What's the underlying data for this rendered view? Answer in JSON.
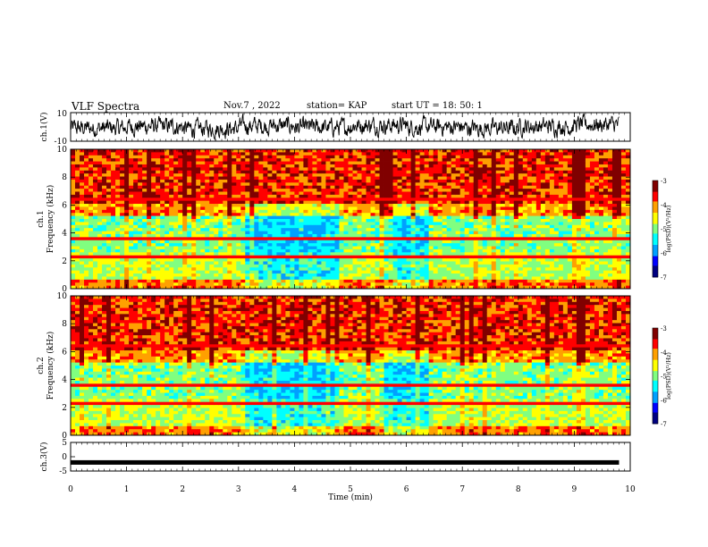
{
  "header": {
    "title": "VLF Spectra",
    "date": "Nov.7 , 2022",
    "station": "station= KAP",
    "start_ut": "start UT = 18: 50: 1"
  },
  "colors": {
    "colormap": [
      "#000080",
      "#0000ff",
      "#00a0ff",
      "#00ffff",
      "#80ff80",
      "#ffff00",
      "#ffa000",
      "#ff0000",
      "#800000"
    ],
    "waveform": "#000000",
    "frame": "#000000"
  },
  "chart_data": [
    {
      "type": "line",
      "panel": "ch1_waveform",
      "xlabel": "",
      "ylabel": "ch.1(V)",
      "xlim": [
        0,
        10
      ],
      "ylim": [
        -10,
        10
      ],
      "yticks": [
        "10",
        "-10"
      ],
      "description_values_x_min": [
        0,
        1,
        2,
        3,
        4,
        5,
        6,
        7,
        8,
        9,
        9.8
      ],
      "values": [
        -2,
        1,
        -3,
        2,
        -1,
        3,
        0,
        -2,
        1,
        4,
        2
      ]
    },
    {
      "type": "heatmap",
      "panel": "ch1_spectrogram",
      "ylabel": "ch.1 Frequency (kHz)",
      "xlim": [
        0,
        10
      ],
      "ylim": [
        0,
        10
      ],
      "yticks": [
        "0",
        "2",
        "4",
        "6",
        "8",
        "10"
      ],
      "colorbar": {
        "label": "log(PSD)(V²/Hz)",
        "range": [
          -7,
          -3
        ],
        "ticks": [
          "-3",
          "-4",
          "-5",
          "-6",
          "-7"
        ]
      },
      "low_activity_intervals_min": [
        [
          3.1,
          4.8
        ],
        [
          5.6,
          6.4
        ]
      ]
    },
    {
      "type": "heatmap",
      "panel": "ch2_spectrogram",
      "ylabel": "ch.2 Frequency (kHz)",
      "xlim": [
        0,
        10
      ],
      "ylim": [
        0,
        10
      ],
      "yticks": [
        "0",
        "2",
        "4",
        "6",
        "8",
        "10"
      ],
      "colorbar": {
        "label": "log(PSD)(V²/Hz)",
        "range": [
          -7,
          -3
        ],
        "ticks": [
          "-3",
          "-4",
          "-5",
          "-6",
          "-7"
        ]
      },
      "low_activity_intervals_min": [
        [
          3.1,
          4.8
        ],
        [
          5.6,
          6.4
        ]
      ]
    },
    {
      "type": "line",
      "panel": "ch3_voltage",
      "ylabel": "ch.3(V)",
      "xlabel": "Time (min)",
      "xlim": [
        0,
        10
      ],
      "ylim": [
        -5,
        5
      ],
      "yticks": [
        "5",
        "0",
        "-5"
      ],
      "xticks": [
        "0",
        "1",
        "2",
        "3",
        "4",
        "5",
        "6",
        "7",
        "8",
        "9",
        "10"
      ],
      "x": [
        0,
        9.8
      ],
      "values": [
        -2,
        -2
      ]
    }
  ]
}
